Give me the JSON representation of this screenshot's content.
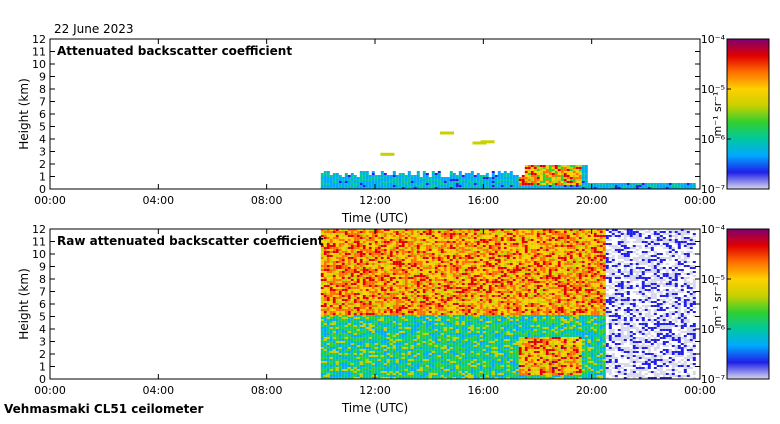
{
  "date_label": "22 June 2023",
  "footer_label": "Vehmasmaki CL51 ceilometer",
  "colors": {
    "scale": [
      "#d8d8ec",
      "#2020e8",
      "#00a8ff",
      "#00c8a0",
      "#30d030",
      "#c8d000",
      "#ffd000",
      "#ff7000",
      "#e00000",
      "#800070"
    ],
    "frame": "#000000",
    "background": "#ffffff"
  },
  "chart_data": [
    {
      "type": "heatmap",
      "title": "Attenuated backscatter coefficient",
      "xlabel": "Time (UTC)",
      "ylabel": "Height (km)",
      "xlim": [
        0,
        24
      ],
      "ylim": [
        0,
        12
      ],
      "xticks": [
        0,
        4,
        8,
        12,
        16,
        20,
        24
      ],
      "xtick_labels": [
        "00:00",
        "04:00",
        "08:00",
        "12:00",
        "16:00",
        "20:00",
        "00:00"
      ],
      "yticks": [
        0,
        1,
        2,
        3,
        4,
        5,
        6,
        7,
        8,
        9,
        10,
        11,
        12
      ],
      "ytick_labels": [
        "0",
        "1",
        "2",
        "3",
        "4",
        "5",
        "6",
        "7",
        "8",
        "9",
        "10",
        "11",
        "12"
      ],
      "data_start_hour": 10.0,
      "data_end_hour": 23.8,
      "colorbar": {
        "unit_label": "m⁻¹ sr⁻¹",
        "ticks": [
          -7,
          -6,
          -5,
          -4
        ],
        "tick_labels": [
          "10⁻⁷",
          "10⁻⁶",
          "10⁻⁵",
          "10⁻⁴"
        ]
      }
    },
    {
      "type": "heatmap",
      "title": "Raw attenuated backscatter coefficient",
      "xlabel": "Time (UTC)",
      "ylabel": "Height (km)",
      "xlim": [
        0,
        24
      ],
      "ylim": [
        0,
        12
      ],
      "xticks": [
        0,
        4,
        8,
        12,
        16,
        20,
        24
      ],
      "xtick_labels": [
        "00:00",
        "04:00",
        "08:00",
        "12:00",
        "16:00",
        "20:00",
        "00:00"
      ],
      "yticks": [
        0,
        1,
        2,
        3,
        4,
        5,
        6,
        7,
        8,
        9,
        10,
        11,
        12
      ],
      "ytick_labels": [
        "0",
        "1",
        "2",
        "3",
        "4",
        "5",
        "6",
        "7",
        "8",
        "9",
        "10",
        "11",
        "12"
      ],
      "data_start_hour": 10.0,
      "data_end_hour": 23.8,
      "colorbar": {
        "unit_label": "m⁻¹ sr⁻¹",
        "ticks": [
          -7,
          -6,
          -5,
          -4
        ],
        "tick_labels": [
          "10⁻⁷",
          "10⁻⁶",
          "10⁻⁵",
          "10⁻⁴"
        ]
      }
    }
  ]
}
